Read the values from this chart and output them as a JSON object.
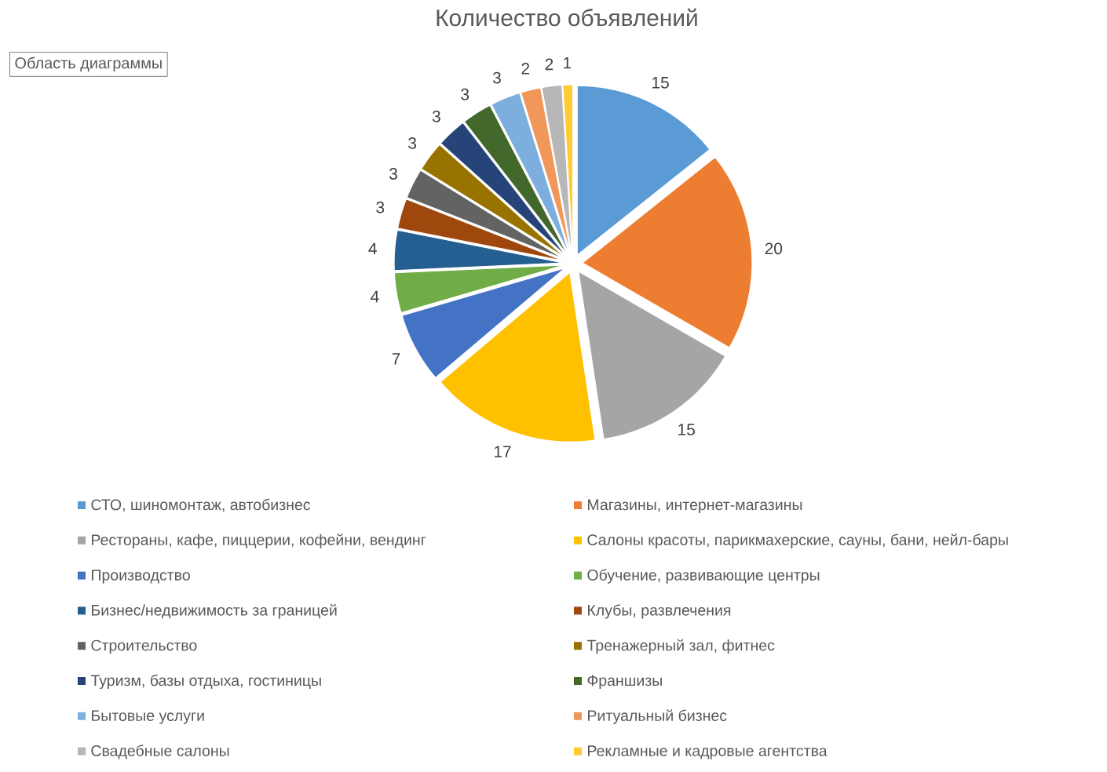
{
  "chart_data": {
    "type": "pie",
    "title": "Количество объявлений",
    "categories": [
      "СТО, шиномонтаж, автобизнес",
      "Магазины, интернет-магазины",
      "Рестораны, кафе, пиццерии, кофейни, вендинг",
      "Салоны красоты, парикмахерские, сауны, бани, нейл-бары",
      "Производство",
      "Обучение, развивающие центры",
      "Бизнес/недвижимость за границей",
      "Клубы, развлечения",
      "Строительство",
      "Тренажерный зал, фитнес",
      "Туризм, базы отдыха, гостиницы",
      "Франшизы",
      "Бытовые услуги",
      "Ритуальный бизнес",
      "Свадебные салоны",
      "Рекламные и кадровые агентства"
    ],
    "values": [
      15,
      20,
      15,
      17,
      7,
      4,
      4,
      3,
      3,
      3,
      3,
      3,
      3,
      2,
      2,
      1
    ],
    "colors": [
      "#5b9bd5",
      "#ed7d31",
      "#a5a5a5",
      "#ffc000",
      "#4472c4",
      "#70ad47",
      "#255e91",
      "#9e480e",
      "#636363",
      "#997300",
      "#264478",
      "#43682b",
      "#7cafdd",
      "#f1975a",
      "#b7b7b7",
      "#ffcd33"
    ],
    "data_labels": true,
    "legend": "bottom",
    "annotations": [
      "Область диаграммы"
    ]
  }
}
